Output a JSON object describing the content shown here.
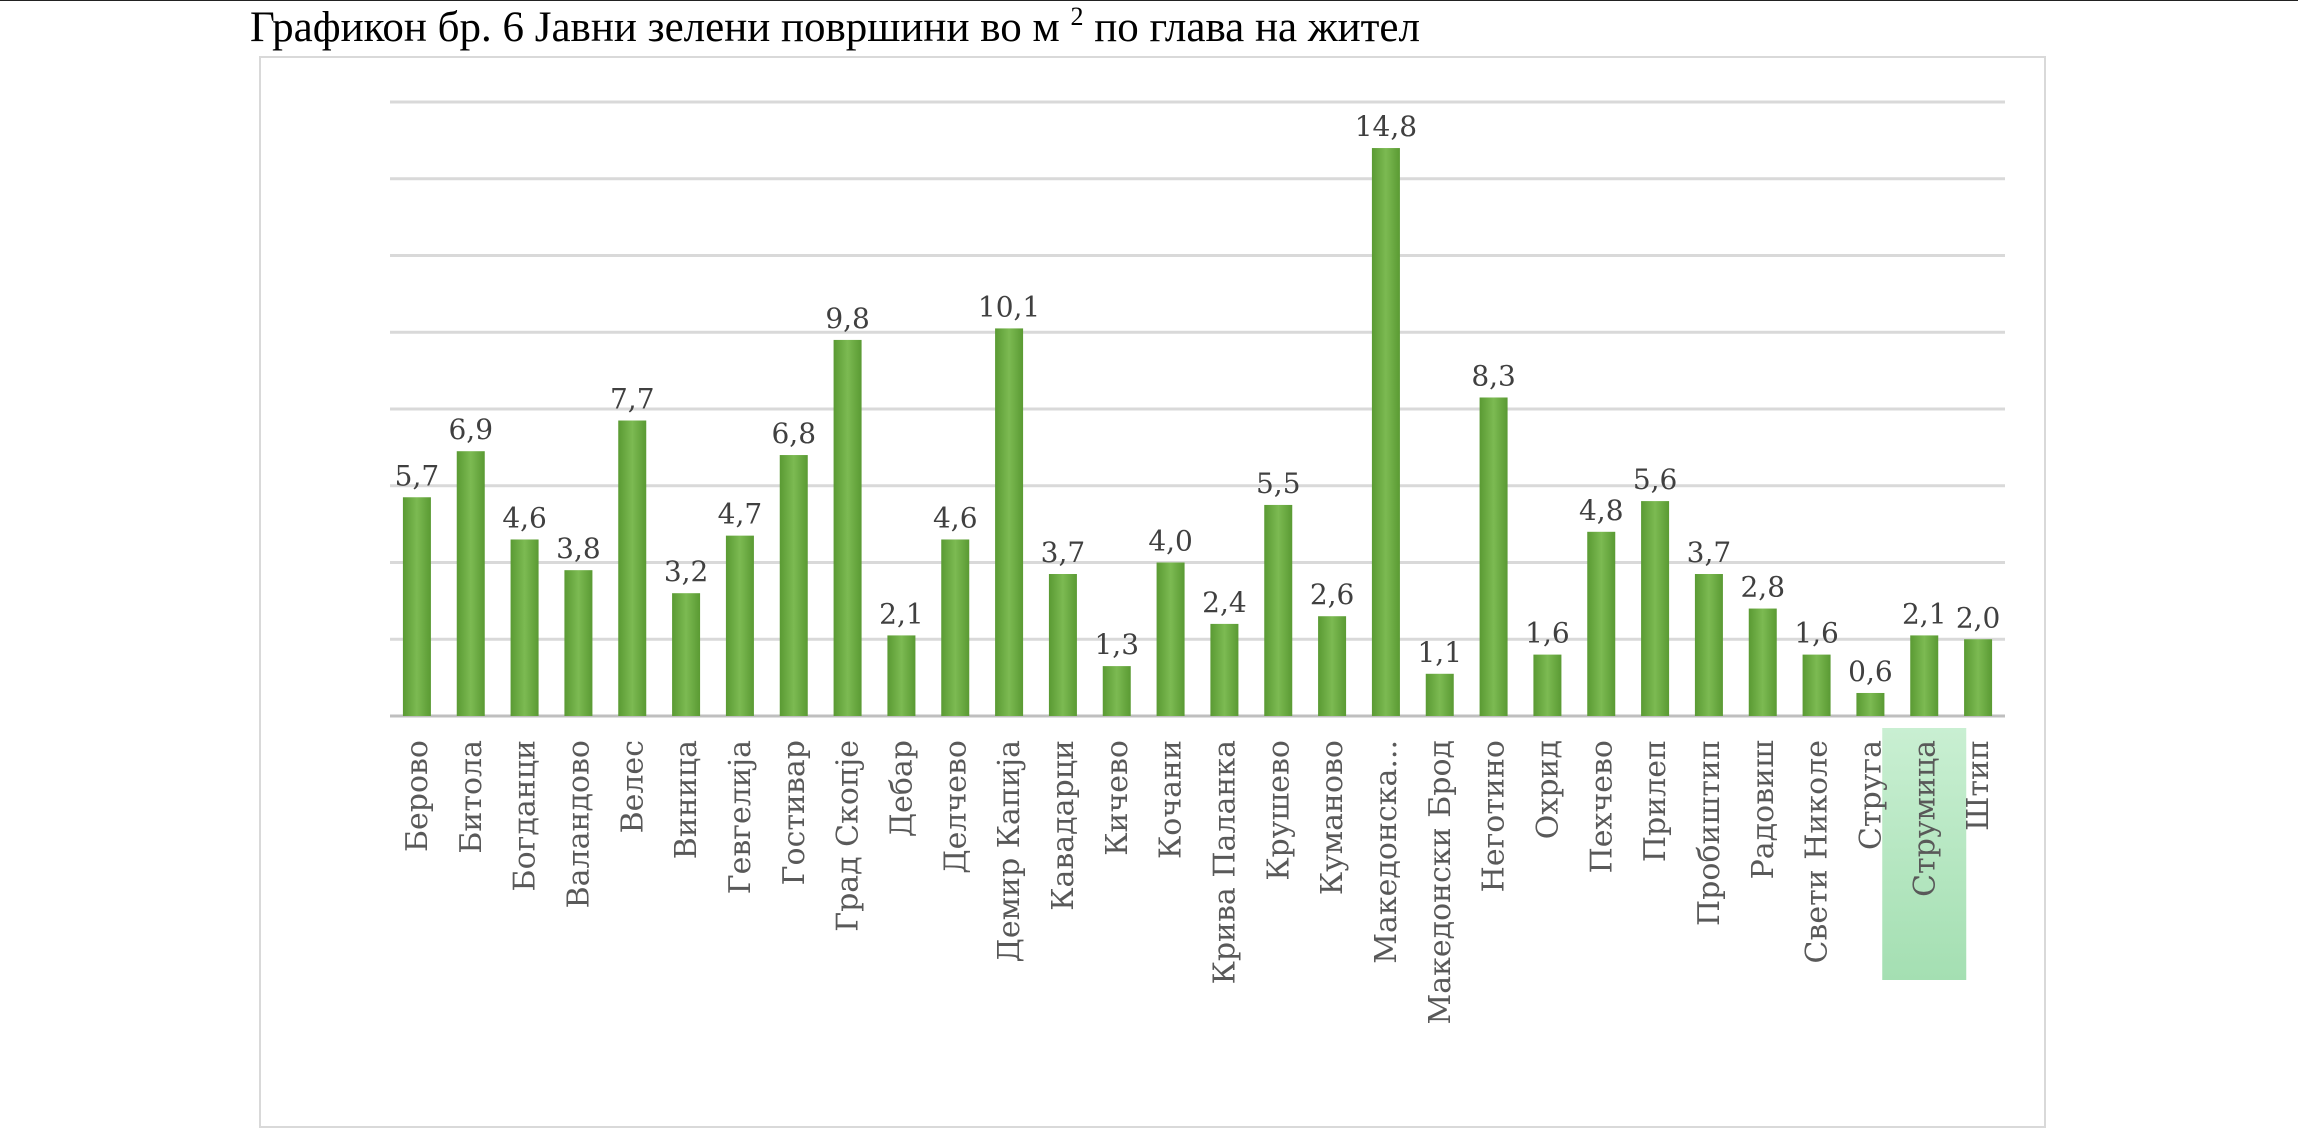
{
  "title_main": "Графикон бр. 6 Јавни зелени површини во м ",
  "title_sup": "2",
  "title_tail": " по глава на жител",
  "chart_data": {
    "type": "bar",
    "categories": [
      "Берово",
      "Битола",
      "Богданци",
      "Валандово",
      "Велес",
      "Виница",
      "Гевгелија",
      "Гостивар",
      "Град Скопје",
      "Дебар",
      "Делчево",
      "Демир Капија",
      "Кавадарци",
      "Кичево",
      "Кочани",
      "Крива Паланка",
      "Крушево",
      "Куманово",
      "Македонска...",
      "Македонски Брод",
      "Неготино",
      "Охрид",
      "Пехчево",
      "Прилеп",
      "Пробиштип",
      "Радовиш",
      "Свети Николе",
      "Струга",
      "Струмица",
      "Штип"
    ],
    "values": [
      5.7,
      6.9,
      4.6,
      3.8,
      7.7,
      3.2,
      4.7,
      6.8,
      9.8,
      2.1,
      4.6,
      10.1,
      3.7,
      1.3,
      4.0,
      2.4,
      5.5,
      2.6,
      14.8,
      1.1,
      8.3,
      1.6,
      4.8,
      5.6,
      3.7,
      2.8,
      1.6,
      0.6,
      2.1,
      2.0
    ],
    "labels": [
      "5,7",
      "6,9",
      "4,6",
      "3,8",
      "7,7",
      "3,2",
      "4,7",
      "6,8",
      "9,8",
      "2,1",
      "4,6",
      "10,1",
      "3,7",
      "1,3",
      "4,0",
      "2,4",
      "5,5",
      "2,6",
      "14,8",
      "1,1",
      "8,3",
      "1,6",
      "4,8",
      "5,6",
      "3,7",
      "2,8",
      "1,6",
      "0,6",
      "2,1",
      "2,0"
    ],
    "highlighted_category": "Струмица",
    "ylim": [
      0,
      16
    ],
    "grid": true,
    "bar_color": "#70ad47",
    "highlight_color": "#a9e2b6"
  }
}
